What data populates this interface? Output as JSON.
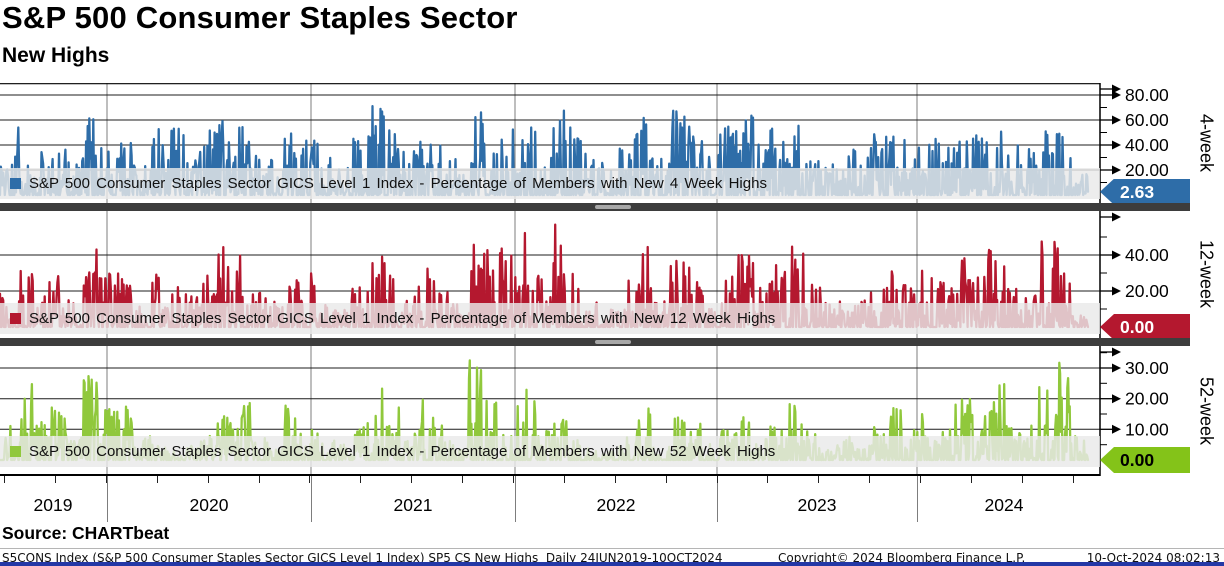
{
  "chart_data": {
    "type": "line",
    "title": "S&P 500 Consumer Staples Sector",
    "subtitle": "New Highs",
    "frequency": "Daily",
    "date_range": "24JUN2019-10OCT2024",
    "x_year_labels": [
      "2019",
      "2020",
      "2021",
      "2022",
      "2023",
      "2024"
    ],
    "grid": true,
    "legend_position": "inside-bottom-band",
    "panels": [
      {
        "id": "4-week",
        "axis_label": "4-week",
        "legend": "S&P 500 Consumer Staples Sector GICS Level 1 Index - Percentage of Members with New 4 Week Highs",
        "color": "#2e6da8",
        "badge_bg": "#2e6da8",
        "badge_fg": "#ffffff",
        "last_value": "2.63",
        "last_value_num": 2.63,
        "ylim": [
          0,
          89.6
        ],
        "yticks": [
          20,
          40,
          60,
          80
        ],
        "yticks_minor": [
          10,
          30,
          50,
          70
        ],
        "tick_format": "0.00",
        "seed": 1101,
        "monthly_envelope": [
          35,
          55,
          40,
          45,
          30,
          65,
          40,
          45,
          25,
          60,
          55,
          40,
          55,
          60,
          55,
          35,
          30,
          55,
          45,
          30,
          25,
          45,
          75,
          55,
          40,
          55,
          45,
          30,
          70,
          45,
          55,
          60,
          40,
          80,
          55,
          30,
          25,
          55,
          65,
          30,
          70,
          60,
          40,
          55,
          65,
          45,
          60,
          70,
          45,
          30,
          40,
          35,
          55,
          65,
          45,
          55,
          45,
          60,
          50,
          70,
          45,
          40,
          65,
          60,
          18
        ]
      },
      {
        "id": "12-week",
        "axis_label": "12-week",
        "legend": "S&P 500 Consumer Staples Sector GICS Level 1 Index - Percentage of Members with New 12 Week Highs",
        "color": "#b4182f",
        "badge_bg": "#b4182f",
        "badge_fg": "#ffffff",
        "last_value": "0.00",
        "last_value_num": 0,
        "ylim": [
          0,
          64.4
        ],
        "yticks": [
          20,
          40
        ],
        "yticks_minor": [
          10,
          30,
          50
        ],
        "tick_format": "0.00",
        "seed": 2202,
        "monthly_envelope": [
          20,
          35,
          25,
          30,
          15,
          45,
          30,
          35,
          15,
          30,
          25,
          20,
          30,
          45,
          40,
          20,
          15,
          35,
          30,
          15,
          10,
          25,
          40,
          30,
          20,
          35,
          25,
          15,
          55,
          50,
          45,
          55,
          30,
          58,
          35,
          15,
          10,
          30,
          45,
          15,
          40,
          35,
          20,
          30,
          40,
          25,
          35,
          45,
          25,
          15,
          20,
          15,
          30,
          40,
          25,
          35,
          25,
          40,
          30,
          45,
          25,
          20,
          50,
          45,
          8
        ]
      },
      {
        "id": "52-week",
        "axis_label": "52-week",
        "legend": "S&P 500 Consumer Staples Sector GICS Level 1 Index - Percentage of Members with New 52 Week Highs",
        "color": "#90c83c",
        "badge_bg": "#84c319",
        "badge_fg": "#000000",
        "last_value": "0.00",
        "last_value_num": 0,
        "ylim": [
          0,
          37.2
        ],
        "yticks": [
          10,
          20,
          30
        ],
        "yticks_minor": [
          5,
          15,
          25,
          35
        ],
        "tick_format": "0.00",
        "seed": 3303,
        "monthly_envelope": [
          12,
          25,
          15,
          18,
          8,
          28,
          18,
          25,
          8,
          5,
          3,
          5,
          8,
          15,
          20,
          8,
          5,
          18,
          12,
          8,
          5,
          12,
          28,
          18,
          10,
          20,
          12,
          8,
          33,
          25,
          20,
          25,
          10,
          15,
          8,
          4,
          3,
          10,
          18,
          5,
          15,
          12,
          6,
          10,
          15,
          8,
          12,
          20,
          10,
          5,
          8,
          5,
          12,
          18,
          10,
          15,
          10,
          20,
          15,
          25,
          12,
          15,
          30,
          33,
          8
        ]
      }
    ]
  },
  "source_line": "Source: CHARTbeat",
  "footer": {
    "left": "S5CONS Index (S&P 500 Consumer Staples Sector GICS Level 1 Index) SP5 CS New Highs  Daily 24JUN2019-10OCT2024",
    "center": "Copyright© 2024 Bloomberg Finance L.P.",
    "right": "10-Oct-2024 08:02:13"
  }
}
